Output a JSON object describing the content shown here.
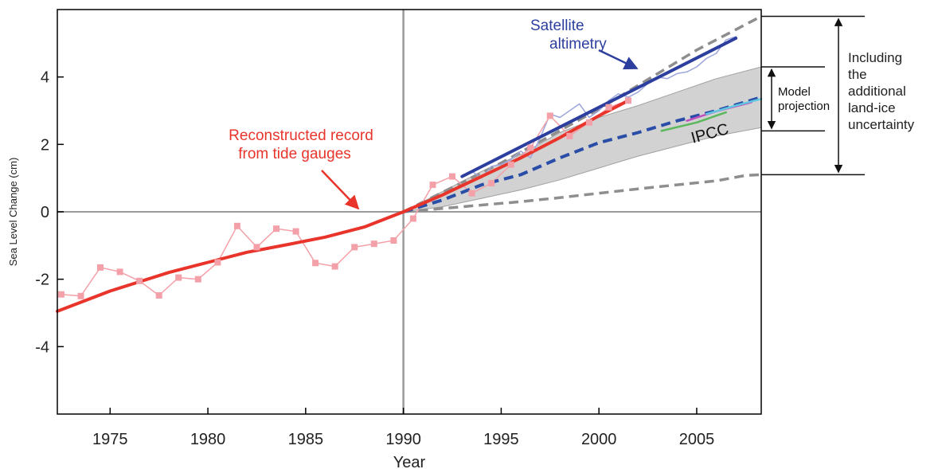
{
  "chart_data": {
    "type": "line",
    "title": "",
    "xlabel": "Year",
    "ylabel": "Sea Level Change (cm)",
    "xlim": [
      1972.3,
      2008.3
    ],
    "ylim": [
      -6,
      6
    ],
    "x_ticks": [
      1975,
      1980,
      1985,
      1990,
      1995,
      2000,
      2005
    ],
    "y_ticks": [
      -4,
      -2,
      0,
      2,
      4
    ],
    "grid": false,
    "series": [
      {
        "key": "tide_obs",
        "color": "#f4a0a8",
        "style": "thin-line-square-markers",
        "x": [
          1972.5,
          1973.5,
          1974.5,
          1975.5,
          1976.5,
          1977.5,
          1978.5,
          1979.5,
          1980.5,
          1981.5,
          1982.5,
          1983.5,
          1984.5,
          1985.5,
          1986.5,
          1987.5,
          1988.5,
          1989.5,
          1990.5,
          1991.5,
          1992.5,
          1993.5,
          1994.5,
          1995.5,
          1996.5,
          1997.5,
          1998.5,
          1999.5,
          2000.5,
          2001.5
        ],
        "y": [
          -2.45,
          -2.5,
          -1.65,
          -1.78,
          -2.05,
          -2.48,
          -1.95,
          -2.0,
          -1.5,
          -0.42,
          -1.05,
          -0.5,
          -0.58,
          -1.52,
          -1.62,
          -1.05,
          -0.95,
          -0.85,
          -0.2,
          0.8,
          1.05,
          0.55,
          0.85,
          1.4,
          1.9,
          2.85,
          2.25,
          2.65,
          3.1,
          3.3
        ]
      },
      {
        "key": "tide_smooth",
        "color": "#e8342a",
        "style": "thick-line",
        "x": [
          1972.3,
          1975,
          1978,
          1980,
          1982,
          1984,
          1986,
          1988,
          1990,
          1992,
          1994,
          1996,
          1998,
          2000,
          2001.5
        ],
        "y": [
          -2.95,
          -2.35,
          -1.8,
          -1.5,
          -1.2,
          -0.98,
          -0.75,
          -0.45,
          0.0,
          0.5,
          1.05,
          1.6,
          2.2,
          2.85,
          3.3
        ]
      },
      {
        "key": "sat_obs",
        "color": "#9ea6dc",
        "style": "thin-line",
        "x": [
          1993.0,
          1993.5,
          1994.0,
          1994.5,
          1995.0,
          1995.5,
          1996.0,
          1996.5,
          1997.0,
          1997.5,
          1998.0,
          1998.5,
          1999.0,
          1999.5,
          2000.0,
          2000.5,
          2001.0,
          2001.5,
          2002.0,
          2002.5,
          2003.0,
          2003.5,
          2004.0,
          2004.5,
          2005.0,
          2005.5,
          2006.0,
          2006.5,
          2007.0
        ],
        "y": [
          1.05,
          1.2,
          1.0,
          1.35,
          1.4,
          1.55,
          1.8,
          1.6,
          2.2,
          2.9,
          2.8,
          3.0,
          3.2,
          2.8,
          3.0,
          3.3,
          3.5,
          3.4,
          3.55,
          3.8,
          4.0,
          3.95,
          4.1,
          4.15,
          4.3,
          4.55,
          4.7,
          5.1,
          5.2
        ]
      },
      {
        "key": "sat_trend",
        "color": "#2d3f9e",
        "style": "thick-line",
        "x": [
          1993.0,
          2007.0
        ],
        "y": [
          1.05,
          5.15
        ]
      },
      {
        "key": "upper_bound",
        "color": "#8e8e8e",
        "style": "thick-dashed",
        "x": [
          1990,
          1995,
          2000,
          2005,
          2008.3
        ],
        "y": [
          0,
          1.45,
          3.05,
          4.8,
          5.8
        ]
      },
      {
        "key": "lower_bound",
        "color": "#8e8e8e",
        "style": "thick-dashed",
        "x": [
          1990,
          1992,
          1994,
          1996,
          1998,
          2000,
          2002,
          2004,
          2006,
          2007.5,
          2008.3
        ],
        "y": [
          0,
          0.1,
          0.2,
          0.3,
          0.42,
          0.55,
          0.68,
          0.8,
          0.92,
          1.08,
          1.1
        ]
      },
      {
        "key": "model_mean",
        "color": "#2a4ea8",
        "style": "thick-dashed",
        "x": [
          1990,
          1992,
          1994,
          1996,
          1998,
          2000,
          2002,
          2004,
          2006,
          2008.3
        ],
        "y": [
          0,
          0.35,
          0.8,
          1.1,
          1.6,
          2.05,
          2.35,
          2.7,
          3.0,
          3.4
        ]
      },
      {
        "key": "band_upper",
        "color": "#c8c8c8",
        "x": [
          1990,
          1992,
          1994,
          1996,
          1998,
          2000,
          2002,
          2004,
          2006,
          2008.3
        ],
        "y": [
          0,
          0.6,
          1.2,
          1.7,
          2.35,
          2.8,
          3.15,
          3.55,
          3.95,
          4.3
        ]
      },
      {
        "key": "band_lower",
        "color": "#c8c8c8",
        "x": [
          1990,
          1992,
          1994,
          1996,
          1998,
          2000,
          2002,
          2004,
          2006,
          2008.3
        ],
        "y": [
          0,
          0.15,
          0.4,
          0.65,
          0.95,
          1.3,
          1.65,
          1.95,
          2.25,
          2.5
        ]
      },
      {
        "key": "ipcc_green",
        "color": "#5cb85c",
        "style": "line",
        "x": [
          2003.2,
          2005.0,
          2006.5
        ],
        "y": [
          2.4,
          2.65,
          2.95
        ]
      },
      {
        "key": "ipcc_magenta",
        "color": "#c050c0",
        "style": "line",
        "x": [
          2004.5,
          2006.0,
          2007.8
        ],
        "y": [
          2.7,
          2.98,
          3.25
        ]
      },
      {
        "key": "ipcc_cyan",
        "color": "#60c8e0",
        "style": "line",
        "x": [
          2005.5,
          2007.0,
          2008.3
        ],
        "y": [
          2.9,
          3.15,
          3.35
        ]
      }
    ],
    "annotations": {
      "tide_label": [
        "Reconstructed record",
        "from tide gauges"
      ],
      "sat_label": [
        "Satellite",
        "altimetry"
      ],
      "ipcc_label": "IPCC",
      "model_label": [
        "Model",
        "projection"
      ],
      "landice_label": [
        "Including",
        "the",
        "additional",
        "land-ice",
        "uncertainty"
      ]
    },
    "colors": {
      "tide": "#e8342a",
      "satellite": "#2d3f9e",
      "band": "#c8c8c8",
      "axis": "#9a9a9a"
    }
  }
}
